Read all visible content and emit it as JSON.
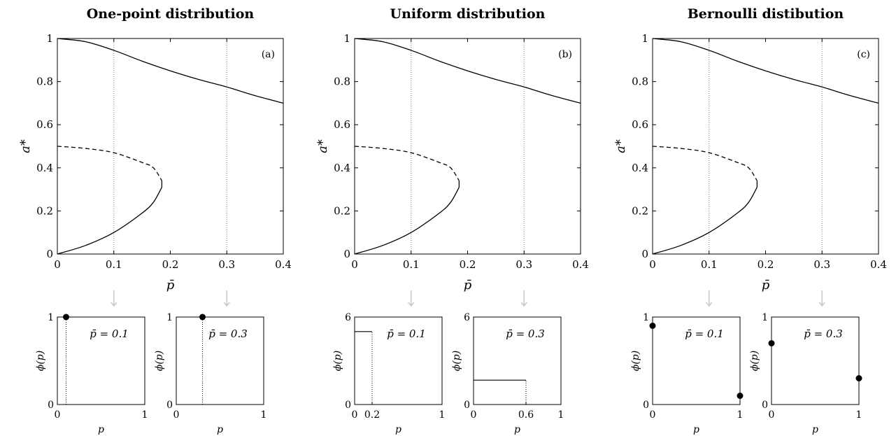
{
  "chart_data": [
    {
      "type": "line",
      "title": "One-point distribution",
      "panel_label": "(a)",
      "xlabel": "p̄",
      "ylabel": "a*",
      "xlim": [
        0,
        0.4
      ],
      "ylim": [
        0,
        1
      ],
      "xticks": [
        "0",
        "0.1",
        "0.2",
        "0.3",
        "0.4"
      ],
      "yticks": [
        "0",
        "0.2",
        "0.4",
        "0.6",
        "0.8",
        "1"
      ],
      "reference_lines_x": [
        0.1,
        0.3
      ],
      "series": [
        {
          "style": "solid",
          "x": [
            0,
            0.05,
            0.1,
            0.15,
            0.2,
            0.25,
            0.3,
            0.35,
            0.4
          ],
          "y": [
            1,
            0.985,
            0.945,
            0.895,
            0.85,
            0.81,
            0.775,
            0.735,
            0.7
          ]
        },
        {
          "style": "dashed",
          "x": [
            0,
            0.05,
            0.1,
            0.15,
            0.17,
            0.185
          ],
          "y": [
            0.5,
            0.49,
            0.47,
            0.425,
            0.4,
            0.34
          ]
        },
        {
          "style": "solid",
          "x": [
            0,
            0.05,
            0.1,
            0.15,
            0.17,
            0.185
          ],
          "y": [
            0,
            0.04,
            0.1,
            0.19,
            0.24,
            0.31
          ]
        }
      ],
      "insets": [
        {
          "annotation": "p̄ = 0.1",
          "xlabel": "p",
          "ylabel": "ϕ(p)",
          "xticks": [
            "0",
            "1"
          ],
          "yticks": [
            "0",
            "1"
          ],
          "xlim": [
            0,
            1
          ],
          "ylim": [
            0,
            1
          ],
          "points": [
            {
              "x": 0.1,
              "y": 1
            }
          ],
          "vlines": [
            {
              "x": 0.1,
              "y0": 0,
              "y1": 1,
              "style": "dotted"
            }
          ]
        },
        {
          "annotation": "p̄ = 0.3",
          "xlabel": "p",
          "ylabel": "ϕ(p)",
          "xticks": [
            "0",
            "1"
          ],
          "yticks": [
            "0",
            "1"
          ],
          "xlim": [
            0,
            1
          ],
          "ylim": [
            0,
            1
          ],
          "points": [
            {
              "x": 0.3,
              "y": 1
            }
          ],
          "vlines": [
            {
              "x": 0.3,
              "y0": 0,
              "y1": 1,
              "style": "dotted"
            }
          ]
        }
      ]
    },
    {
      "type": "line",
      "title": "Uniform distribution",
      "panel_label": "(b)",
      "xlabel": "p̄",
      "ylabel": "a*",
      "xlim": [
        0,
        0.4
      ],
      "ylim": [
        0,
        1
      ],
      "xticks": [
        "0",
        "0.1",
        "0.2",
        "0.3",
        "0.4"
      ],
      "yticks": [
        "0",
        "0.2",
        "0.4",
        "0.6",
        "0.8",
        "1"
      ],
      "reference_lines_x": [
        0.1,
        0.3
      ],
      "series": [
        {
          "style": "solid",
          "x": [
            0,
            0.05,
            0.1,
            0.15,
            0.2,
            0.25,
            0.3,
            0.35,
            0.4
          ],
          "y": [
            1,
            0.985,
            0.945,
            0.895,
            0.85,
            0.81,
            0.775,
            0.735,
            0.7
          ]
        },
        {
          "style": "dashed",
          "x": [
            0,
            0.05,
            0.1,
            0.15,
            0.17,
            0.185
          ],
          "y": [
            0.5,
            0.49,
            0.47,
            0.425,
            0.4,
            0.34
          ]
        },
        {
          "style": "solid",
          "x": [
            0,
            0.05,
            0.1,
            0.15,
            0.17,
            0.185
          ],
          "y": [
            0,
            0.04,
            0.1,
            0.19,
            0.24,
            0.31
          ]
        }
      ],
      "insets": [
        {
          "annotation": "p̄ = 0.1",
          "xlabel": "p",
          "ylabel": "ϕ(p)",
          "xticks": [
            "0",
            "0.2",
            "1"
          ],
          "yticks": [
            "0",
            "6"
          ],
          "xlim": [
            0,
            1
          ],
          "ylim": [
            0,
            6
          ],
          "segments": [
            {
              "x0": 0,
              "x1": 0.2,
              "y": 5,
              "style": "solid"
            }
          ],
          "vlines": [
            {
              "x": 0.2,
              "y0": 0,
              "y1": 5,
              "style": "dotted"
            }
          ]
        },
        {
          "annotation": "p̄ = 0.3",
          "xlabel": "p",
          "ylabel": "ϕ(p)",
          "xticks": [
            "0",
            "0.6",
            "1"
          ],
          "yticks": [
            "0",
            "6"
          ],
          "xlim": [
            0,
            1
          ],
          "ylim": [
            0,
            6
          ],
          "segments": [
            {
              "x0": 0,
              "x1": 0.6,
              "y": 1.67,
              "style": "solid"
            }
          ],
          "vlines": [
            {
              "x": 0.6,
              "y0": 0,
              "y1": 1.67,
              "style": "dotted"
            }
          ]
        }
      ]
    },
    {
      "type": "line",
      "title": "Bernoulli distibution",
      "panel_label": "(c)",
      "xlabel": "p̄",
      "ylabel": "a*",
      "xlim": [
        0,
        0.4
      ],
      "ylim": [
        0,
        1
      ],
      "xticks": [
        "0",
        "0.1",
        "0.2",
        "0.3",
        "0.4"
      ],
      "yticks": [
        "0",
        "0.2",
        "0.4",
        "0.6",
        "0.8",
        "1"
      ],
      "reference_lines_x": [
        0.1,
        0.3
      ],
      "series": [
        {
          "style": "solid",
          "x": [
            0,
            0.05,
            0.1,
            0.15,
            0.2,
            0.25,
            0.3,
            0.35,
            0.4
          ],
          "y": [
            1,
            0.985,
            0.945,
            0.895,
            0.85,
            0.81,
            0.775,
            0.735,
            0.7
          ]
        },
        {
          "style": "dashed",
          "x": [
            0,
            0.05,
            0.1,
            0.15,
            0.17,
            0.185
          ],
          "y": [
            0.5,
            0.49,
            0.47,
            0.425,
            0.4,
            0.34
          ]
        },
        {
          "style": "solid",
          "x": [
            0,
            0.05,
            0.1,
            0.15,
            0.17,
            0.185
          ],
          "y": [
            0,
            0.04,
            0.1,
            0.19,
            0.24,
            0.31
          ]
        }
      ],
      "insets": [
        {
          "annotation": "p̄ = 0.1",
          "xlabel": "p",
          "ylabel": "ϕ(p)",
          "xticks": [
            "0",
            "1"
          ],
          "yticks": [
            "0",
            "1"
          ],
          "xlim": [
            0,
            1
          ],
          "ylim": [
            0,
            1
          ],
          "points": [
            {
              "x": 0,
              "y": 0.9
            },
            {
              "x": 1,
              "y": 0.1
            }
          ],
          "vlines": [
            {
              "x": 0,
              "y0": 0,
              "y1": 0.9,
              "style": "dotted"
            }
          ]
        },
        {
          "annotation": "p̄ = 0.3",
          "xlabel": "p",
          "ylabel": "ϕ(p)",
          "xticks": [
            "0",
            "1"
          ],
          "yticks": [
            "0",
            "1"
          ],
          "xlim": [
            0,
            1
          ],
          "ylim": [
            0,
            1
          ],
          "points": [
            {
              "x": 0,
              "y": 0.7
            },
            {
              "x": 1,
              "y": 0.3
            }
          ],
          "vlines": [
            {
              "x": 0,
              "y0": 0,
              "y1": 0.7,
              "style": "dotted"
            }
          ]
        }
      ]
    }
  ],
  "colors": {
    "curve": "#000000",
    "reference_line": "#808080",
    "arrow": "#c8c8c8",
    "axis": "#000000"
  }
}
